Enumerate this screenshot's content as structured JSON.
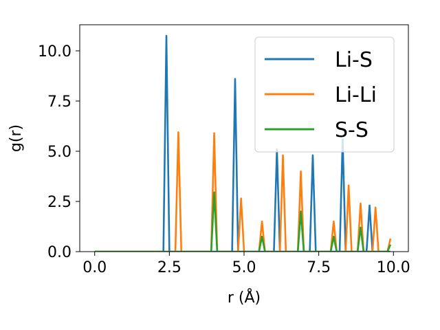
{
  "chart_data": {
    "type": "line",
    "title": "",
    "xlabel": "r (Å)",
    "ylabel": "g(r)",
    "xlim": [
      -0.5,
      10.5
    ],
    "ylim": [
      0,
      11.3
    ],
    "xticks": [
      0.0,
      2.5,
      5.0,
      7.5,
      10.0
    ],
    "xtick_labels": [
      "0.0",
      "2.5",
      "5.0",
      "7.5",
      "10.0"
    ],
    "yticks": [
      0.0,
      2.5,
      5.0,
      7.5,
      10.0
    ],
    "ytick_labels": [
      "0.0",
      "2.5",
      "5.0",
      "7.5",
      "10.0"
    ],
    "grid": false,
    "legend_position": "top-right",
    "series": [
      {
        "name": "Li-S",
        "color": "#1f77b4",
        "x": [
          0.0,
          2.3,
          2.4,
          2.5,
          4.6,
          4.7,
          4.8,
          6.0,
          6.1,
          6.2,
          7.2,
          7.3,
          7.4,
          8.2,
          8.3,
          8.4,
          9.1,
          9.2,
          9.3,
          9.9
        ],
        "y": [
          0.0,
          0.0,
          10.75,
          0.0,
          0.0,
          8.6,
          0.0,
          0.0,
          5.1,
          0.0,
          0.0,
          4.8,
          0.0,
          0.0,
          5.6,
          0.0,
          0.0,
          2.3,
          0.0,
          0.0
        ]
      },
      {
        "name": "Li-Li",
        "color": "#ff7f0e",
        "x": [
          0.0,
          2.7,
          2.8,
          2.9,
          3.9,
          4.0,
          4.1,
          4.8,
          4.9,
          5.0,
          5.5,
          5.6,
          5.7,
          6.2,
          6.3,
          6.4,
          6.8,
          6.9,
          7.0,
          7.9,
          8.0,
          8.1,
          8.4,
          8.5,
          8.6,
          8.8,
          8.9,
          9.0,
          9.3,
          9.4,
          9.5,
          9.8,
          9.9
        ],
        "y": [
          0.0,
          0.0,
          5.95,
          0.0,
          0.0,
          5.9,
          0.0,
          0.0,
          2.65,
          0.0,
          0.0,
          1.5,
          0.0,
          0.0,
          4.8,
          0.0,
          0.0,
          4.0,
          0.0,
          0.0,
          1.5,
          0.0,
          0.0,
          3.3,
          0.0,
          0.0,
          2.4,
          0.0,
          0.0,
          2.2,
          0.0,
          0.0,
          0.65
        ]
      },
      {
        "name": "S-S",
        "color": "#2ca02c",
        "x": [
          0.0,
          3.9,
          4.0,
          4.1,
          5.5,
          5.6,
          5.7,
          6.8,
          6.9,
          7.0,
          7.9,
          8.0,
          8.1,
          8.8,
          8.9,
          9.0,
          9.8,
          9.9
        ],
        "y": [
          0.0,
          0.0,
          2.95,
          0.0,
          0.0,
          0.75,
          0.0,
          0.0,
          2.0,
          0.0,
          0.0,
          0.75,
          0.0,
          0.0,
          1.2,
          0.0,
          0.0,
          0.35
        ]
      }
    ]
  }
}
